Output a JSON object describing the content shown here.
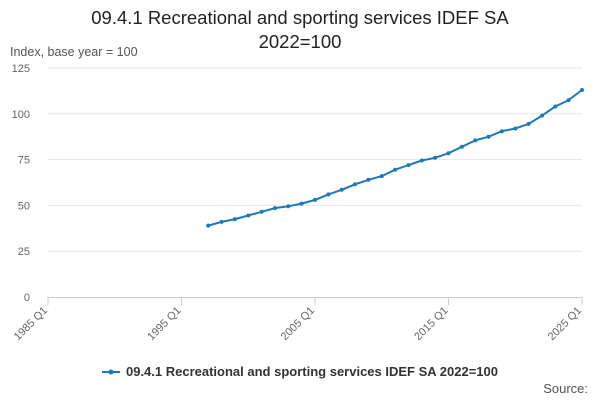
{
  "chart_data": {
    "type": "line",
    "title": "09.4.1 Recreational and sporting services IDEF SA 2022=100",
    "ylabel": "Index, base year = 100",
    "xlabel": "",
    "x_tick_labels": [
      "1985 Q1",
      "1995 Q1",
      "2005 Q1",
      "2015 Q1",
      "2025 Q1"
    ],
    "y_tick_labels": [
      "0",
      "25",
      "50",
      "75",
      "100",
      "125"
    ],
    "ylim": [
      0,
      125
    ],
    "xlim": [
      "1985 Q1",
      "2025 Q1"
    ],
    "grid": "horizontal",
    "legend_position": "bottom",
    "series": [
      {
        "name": "09.4.1 Recreational and sporting services IDEF SA 2022=100",
        "color": "#1c7ab9",
        "x": [
          "1997 Q1",
          "1998 Q1",
          "1999 Q1",
          "2000 Q1",
          "2001 Q1",
          "2002 Q1",
          "2003 Q1",
          "2004 Q1",
          "2005 Q1",
          "2006 Q1",
          "2007 Q1",
          "2008 Q1",
          "2009 Q1",
          "2010 Q1",
          "2011 Q1",
          "2012 Q1",
          "2013 Q1",
          "2014 Q1",
          "2015 Q1",
          "2016 Q1",
          "2017 Q1",
          "2018 Q1",
          "2019 Q1",
          "2020 Q1",
          "2021 Q1",
          "2022 Q1",
          "2023 Q1",
          "2024 Q1",
          "2025 Q1"
        ],
        "values": [
          39.0,
          41.0,
          42.5,
          44.5,
          46.5,
          48.5,
          49.5,
          51.0,
          53.0,
          56.0,
          58.5,
          61.5,
          64.0,
          66.0,
          69.5,
          72.0,
          74.5,
          76.0,
          78.5,
          82.0,
          85.5,
          87.5,
          90.5,
          92.0,
          94.5,
          99.0,
          104.0,
          107.5,
          113.0
        ]
      }
    ]
  },
  "source_label": "Source:"
}
